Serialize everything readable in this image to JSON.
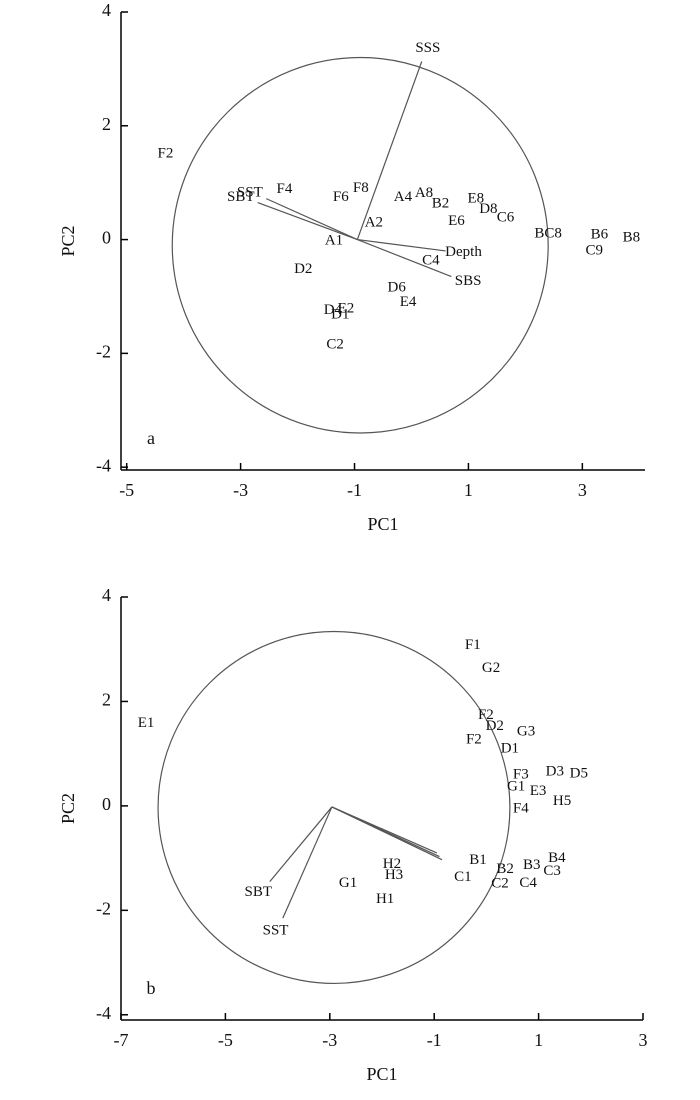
{
  "chart_data": [
    {
      "type": "biplot",
      "panel_label": "a",
      "x_label": "PC1",
      "y_label": "PC2",
      "xlim": [
        -5.1,
        4.1
      ],
      "ylim": [
        -4.05,
        4
      ],
      "xticks": [
        -5,
        -3,
        -1,
        1,
        3
      ],
      "yticks": [
        -4,
        -2,
        0,
        2,
        4
      ],
      "color": "#555555",
      "circle": {
        "cx": -0.9,
        "cy": -0.1,
        "r": 3.3
      },
      "origin": {
        "x": -0.95,
        "y": 0
      },
      "vectors": [
        {
          "name": "SSS",
          "x": 0.18,
          "y": 3.13
        },
        {
          "name": "SST",
          "x": -2.55,
          "y": 0.72
        },
        {
          "name": "SBT",
          "x": -2.7,
          "y": 0.65
        },
        {
          "name": "Depth",
          "x": 0.6,
          "y": -0.2
        },
        {
          "name": "SBS",
          "x": 0.7,
          "y": -0.65
        }
      ],
      "points": [
        {
          "name": "F2",
          "x": -4.32,
          "y": 1.5
        },
        {
          "name": "F4",
          "x": -2.23,
          "y": 0.88
        },
        {
          "name": "F6",
          "x": -1.24,
          "y": 0.74
        },
        {
          "name": "F8",
          "x": -0.89,
          "y": 0.9
        },
        {
          "name": "A4",
          "x": -0.15,
          "y": 0.74
        },
        {
          "name": "A8",
          "x": 0.22,
          "y": 0.81
        },
        {
          "name": "B2",
          "x": 0.51,
          "y": 0.62
        },
        {
          "name": "E8",
          "x": 1.13,
          "y": 0.71
        },
        {
          "name": "D8",
          "x": 1.35,
          "y": 0.53
        },
        {
          "name": "E6",
          "x": 0.79,
          "y": 0.32
        },
        {
          "name": "C6",
          "x": 1.65,
          "y": 0.38
        },
        {
          "name": "BC8",
          "x": 2.4,
          "y": 0.1
        },
        {
          "name": "B6",
          "x": 3.3,
          "y": 0.08
        },
        {
          "name": "B8",
          "x": 3.86,
          "y": 0.03
        },
        {
          "name": "C9",
          "x": 3.21,
          "y": -0.2
        },
        {
          "name": "A2",
          "x": -0.66,
          "y": 0.29
        },
        {
          "name": "A1",
          "x": -1.36,
          "y": -0.03
        },
        {
          "name": "C4",
          "x": 0.34,
          "y": -0.38
        },
        {
          "name": "D2",
          "x": -1.9,
          "y": -0.53
        },
        {
          "name": "D6",
          "x": -0.26,
          "y": -0.85
        },
        {
          "name": "E4",
          "x": -0.06,
          "y": -1.11
        },
        {
          "name": "C2",
          "x": -1.34,
          "y": -1.85
        },
        {
          "name": "D4",
          "x": -1.38,
          "y": -1.25
        },
        {
          "name": "E2",
          "x": -1.15,
          "y": -1.22
        },
        {
          "name": "D1",
          "x": -1.25,
          "y": -1.33
        }
      ]
    },
    {
      "type": "biplot",
      "panel_label": "b",
      "x_label": "PC1",
      "y_label": "PC2",
      "xlim": [
        -7,
        3
      ],
      "ylim": [
        -4.1,
        4
      ],
      "xticks": [
        -7,
        -5,
        -3,
        -1,
        1,
        3
      ],
      "yticks": [
        -4,
        -2,
        0,
        2,
        4
      ],
      "color": "#555555",
      "circle": {
        "cx": -2.92,
        "cy": -0.03,
        "r": 3.37
      },
      "origin": {
        "x": -2.96,
        "y": -0.02
      },
      "vectors": [
        {
          "name": "SBT",
          "x": -4.15,
          "y": -1.45
        },
        {
          "name": "SST",
          "x": -3.9,
          "y": -2.15
        },
        {
          "name": null,
          "x": -0.95,
          "y": -0.9
        },
        {
          "name": null,
          "x": -0.9,
          "y": -0.97
        },
        {
          "name": null,
          "x": -0.85,
          "y": -1.03
        }
      ],
      "points": [
        {
          "name": "E1",
          "x": -6.52,
          "y": 1.58
        },
        {
          "name": "F1",
          "x": -0.26,
          "y": 3.07
        },
        {
          "name": "G2",
          "x": 0.09,
          "y": 2.63
        },
        {
          "name": "F2",
          "x": -0.01,
          "y": 1.73
        },
        {
          "name": "D2",
          "x": 0.16,
          "y": 1.52
        },
        {
          "name": "G3",
          "x": 0.76,
          "y": 1.41
        },
        {
          "name": "F2",
          "x": -0.24,
          "y": 1.26
        },
        {
          "name": "D1",
          "x": 0.45,
          "y": 1.09
        },
        {
          "name": "D3",
          "x": 1.31,
          "y": 0.65
        },
        {
          "name": "D5",
          "x": 1.77,
          "y": 0.61
        },
        {
          "name": "F3",
          "x": 0.66,
          "y": 0.59
        },
        {
          "name": "G1",
          "x": 0.57,
          "y": 0.36
        },
        {
          "name": "E3",
          "x": 0.99,
          "y": 0.27
        },
        {
          "name": "H5",
          "x": 1.45,
          "y": 0.08
        },
        {
          "name": "F4",
          "x": 0.66,
          "y": -0.06
        },
        {
          "name": "B1",
          "x": -0.16,
          "y": -1.05
        },
        {
          "name": "B4",
          "x": 1.35,
          "y": -1.01
        },
        {
          "name": "B2",
          "x": 0.36,
          "y": -1.22
        },
        {
          "name": "B3",
          "x": 0.87,
          "y": -1.14
        },
        {
          "name": "C3",
          "x": 1.26,
          "y": -1.26
        },
        {
          "name": "C1",
          "x": -0.45,
          "y": -1.37
        },
        {
          "name": "C2",
          "x": 0.26,
          "y": -1.5
        },
        {
          "name": "C4",
          "x": 0.8,
          "y": -1.49
        },
        {
          "name": "H2",
          "x": -1.81,
          "y": -1.12
        },
        {
          "name": "H3",
          "x": -1.77,
          "y": -1.33
        },
        {
          "name": "G1",
          "x": -2.65,
          "y": -1.49
        },
        {
          "name": "H1",
          "x": -1.94,
          "y": -1.79
        }
      ]
    }
  ]
}
